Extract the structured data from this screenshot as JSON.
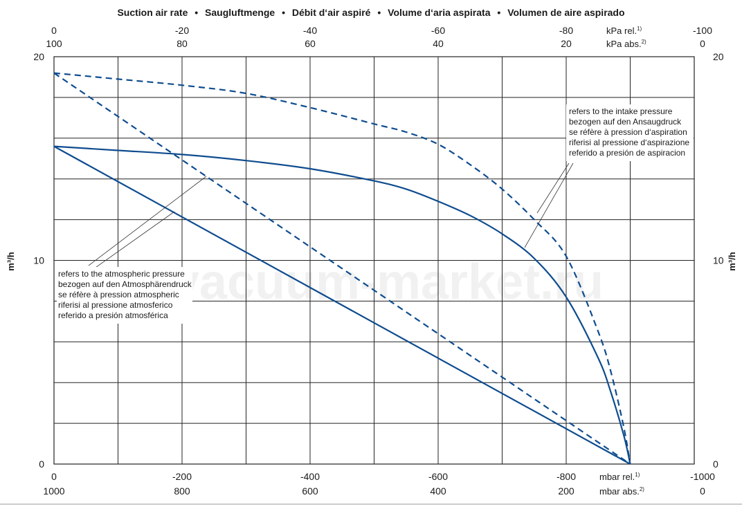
{
  "chart_data": {
    "type": "line",
    "title_parts": [
      "Suction air rate",
      "Saugluftmenge",
      "Débit d‘air aspiré",
      "Volume d‘aria aspirata",
      "Volumen de aire aspirado"
    ],
    "title_separator": "•",
    "ylabel": "m³/h",
    "xlim": [
      0,
      -1000
    ],
    "ylim": [
      0,
      20
    ],
    "grid": true,
    "x_ticks": [
      0,
      -100,
      -200,
      -300,
      -400,
      -500,
      -600,
      -700,
      -800,
      -900,
      -1000
    ],
    "y_ticks": [
      0,
      2,
      4,
      6,
      8,
      10,
      12,
      14,
      16,
      18,
      20
    ],
    "bottom_axis": {
      "rel_labels": [
        "0",
        "-200",
        "-400",
        "-600",
        "-800",
        "-1000"
      ],
      "abs_labels": [
        "1000",
        "800",
        "600",
        "400",
        "200",
        "0"
      ],
      "rel_unit": "mbar rel.",
      "rel_unit_sup": "1)",
      "abs_unit": "mbar abs.",
      "abs_unit_sup": "2)"
    },
    "top_axis": {
      "rel_labels": [
        "0",
        "-20",
        "-40",
        "-60",
        "-80",
        "-100"
      ],
      "abs_labels": [
        "100",
        "80",
        "60",
        "40",
        "20",
        "0"
      ],
      "rel_unit": "kPa rel.",
      "rel_unit_sup": "1)",
      "abs_unit": "kPa abs.",
      "abs_unit_sup": "2)"
    },
    "left_y_labels": [
      "0",
      "10",
      "20"
    ],
    "right_y_labels": [
      "0",
      "10",
      "20"
    ],
    "series": [
      {
        "style": "solid",
        "x": [
          0,
          -900
        ],
        "y": [
          15.6,
          0
        ]
      },
      {
        "style": "solid",
        "x": [
          0,
          -100,
          -200,
          -300,
          -400,
          -500,
          -550,
          -600,
          -650,
          -700,
          -750,
          -800,
          -850,
          -870,
          -890,
          -900
        ],
        "y": [
          15.6,
          15.4,
          15.2,
          14.9,
          14.5,
          13.9,
          13.5,
          12.9,
          12.2,
          11.3,
          10.1,
          8.2,
          5.2,
          3.5,
          1.4,
          0
        ]
      },
      {
        "style": "dashed",
        "x": [
          0,
          -900
        ],
        "y": [
          19.2,
          0
        ]
      },
      {
        "style": "dashed",
        "x": [
          0,
          -100,
          -200,
          -300,
          -400,
          -500,
          -550,
          -600,
          -650,
          -700,
          -750,
          -800,
          -850,
          -870,
          -890,
          -900
        ],
        "y": [
          19.2,
          18.9,
          18.6,
          18.2,
          17.5,
          16.7,
          16.3,
          15.7,
          14.7,
          13.5,
          12.0,
          10.2,
          6.5,
          4.5,
          1.8,
          0
        ]
      }
    ],
    "annotations": {
      "atmospheric": [
        "refers to the atmospheric pressure",
        "bezogen auf den Atmosphärendruck",
        "se réfère à pression atmospheric",
        "riferisi al pressione atmosferico",
        "referido a presión atmosférica"
      ],
      "intake": [
        "refers to the intake pressure",
        "bezogen auf den Ansaugdruck",
        "se réfère à pression d‘aspiration",
        "riferisi al pressione d‘aspirazione",
        "referido a presión de aspiracion"
      ]
    },
    "watermark": "vacuum-market.ru",
    "colors": {
      "curve": "#0e4c8f",
      "grid": "#222222",
      "text": "#1a1a1a"
    }
  }
}
